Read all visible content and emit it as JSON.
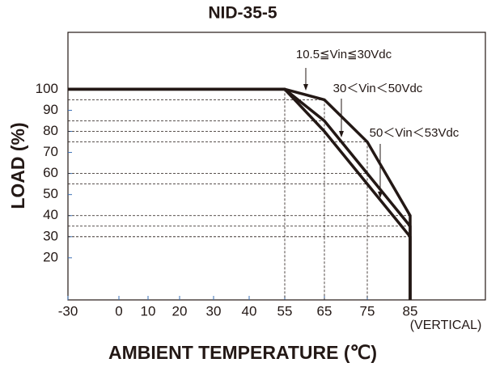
{
  "chart_data": {
    "type": "line",
    "title": "NID-35-5",
    "x_label": "AMBIENT TEMPERATURE (℃)",
    "y_label": "LOAD (%)",
    "annotation": "(VERTICAL)",
    "xlim": [
      -30,
      85
    ],
    "xticks": [
      -30,
      0,
      10,
      20,
      30,
      40,
      55,
      65,
      75,
      85
    ],
    "ylim": [
      0,
      127
    ],
    "yticks": [
      20,
      30,
      40,
      50,
      60,
      70,
      80,
      90,
      100
    ],
    "series": [
      {
        "name": "10.5≦Vin≦30Vdc",
        "color": "#231815",
        "x": [
          -30,
          55,
          65,
          75,
          85,
          85
        ],
        "values": [
          100,
          100,
          95,
          75,
          40,
          0
        ]
      },
      {
        "name": "30＜Vin＜50Vdc",
        "color": "#231815",
        "x": [
          -30,
          55,
          65,
          75,
          85,
          85
        ],
        "values": [
          100,
          100,
          85,
          60,
          35,
          0
        ]
      },
      {
        "name": "50＜Vin＜53Vdc",
        "color": "#231815",
        "x": [
          -30,
          55,
          65,
          75,
          85,
          85
        ],
        "values": [
          100,
          100,
          80,
          55,
          30,
          0
        ]
      }
    ]
  }
}
